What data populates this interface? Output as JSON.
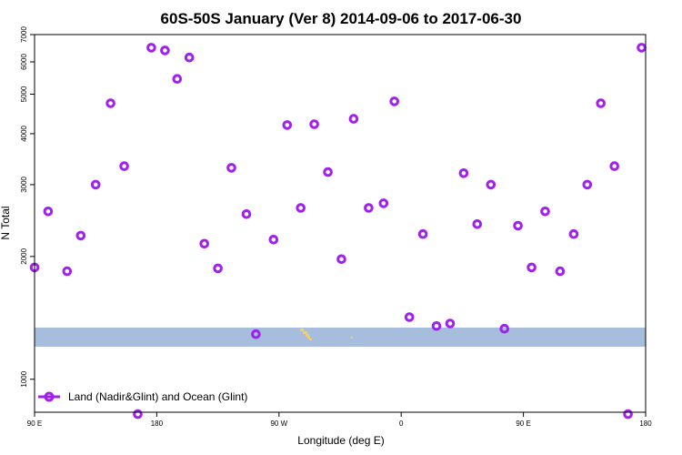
{
  "chart_data": {
    "type": "scatter",
    "title": "60S-50S January (Ver 8)   2014-09-06 to 2017-06-30",
    "xlabel": "Longitude (deg E)",
    "ylabel": "N Total",
    "y_scale": "log",
    "x_ticks": [
      "90 E",
      "180",
      "90 W",
      "0",
      "90 E",
      "180"
    ],
    "y_ticks": [
      1000,
      2000,
      3000,
      4000,
      5000,
      6000,
      7000
    ],
    "legend": {
      "label": "Land (Nadir&Glint) and Ocean (Glint)",
      "placement": "bottom-left"
    },
    "series": [
      {
        "name": "Land (Nadir&Glint) and Ocean (Glint)",
        "color": "#a020f0",
        "marker": "hollow-circle",
        "points": [
          [
            90,
            1880
          ],
          [
            100,
            2580
          ],
          [
            114,
            1840
          ],
          [
            124,
            2250
          ],
          [
            135,
            3000
          ],
          [
            146,
            4750
          ],
          [
            156,
            3330
          ],
          [
            166,
            821
          ],
          [
            176,
            6500
          ],
          [
            186,
            6400
          ],
          [
            195,
            5450
          ],
          [
            204,
            6150
          ],
          [
            215,
            2150
          ],
          [
            225,
            1870
          ],
          [
            235,
            3300
          ],
          [
            246,
            2540
          ],
          [
            253,
            1290
          ],
          [
            266,
            2200
          ],
          [
            276,
            4200
          ],
          [
            286,
            2630
          ],
          [
            296,
            4220
          ],
          [
            306,
            3220
          ],
          [
            316,
            1970
          ],
          [
            325,
            4350
          ],
          [
            336,
            2630
          ],
          [
            347,
            2700
          ],
          [
            355,
            4800
          ],
          [
            366,
            1420
          ],
          [
            376,
            2270
          ],
          [
            386,
            1350
          ],
          [
            396,
            1370
          ],
          [
            406,
            3200
          ],
          [
            416,
            2400
          ],
          [
            426,
            3000
          ],
          [
            436,
            1330
          ],
          [
            446,
            2380
          ],
          [
            456,
            1880
          ],
          [
            466,
            2580
          ],
          [
            477,
            1840
          ],
          [
            487,
            2270
          ],
          [
            497,
            3000
          ],
          [
            507,
            4750
          ],
          [
            517,
            3330
          ],
          [
            527,
            821
          ],
          [
            537,
            6500
          ]
        ]
      }
    ]
  }
}
